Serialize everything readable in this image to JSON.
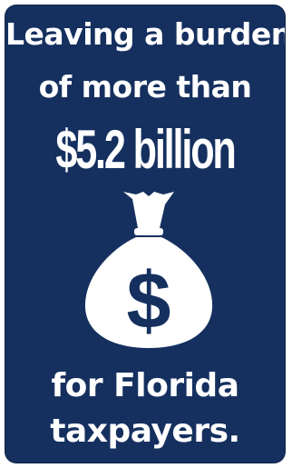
{
  "poster": {
    "headline_line1": "Leaving a burden",
    "headline_line2": "of more than",
    "amount": "$5.2 billion",
    "footer_line1": "for Florida",
    "footer_line2": "taxpayers.",
    "icon": "money-bag-icon",
    "bag_symbol": "$",
    "colors": {
      "background": "#15305f",
      "foreground": "#ffffff"
    }
  }
}
